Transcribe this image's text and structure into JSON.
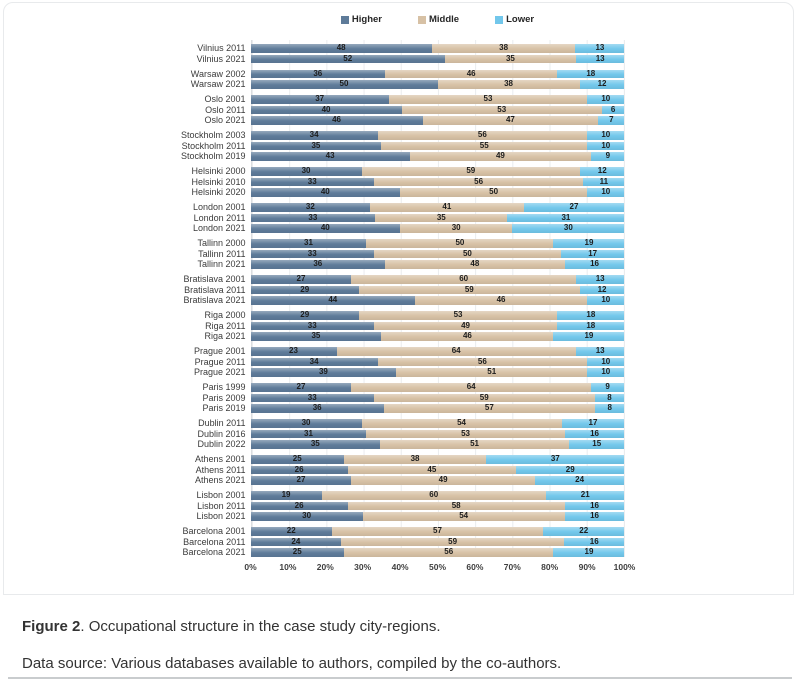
{
  "figure": {
    "caption_label": "Figure 2",
    "caption_text": ". Occupational structure in the case study city-regions.",
    "source_text": "Data source: Various databases available to authors, compiled by the co-authors."
  },
  "chart_data": {
    "type": "bar",
    "orientation": "horizontal",
    "stacked": true,
    "percent_scale": true,
    "xlim": [
      0,
      100
    ],
    "x_ticks": [
      "0%",
      "10%",
      "20%",
      "30%",
      "40%",
      "50%",
      "60%",
      "70%",
      "80%",
      "90%",
      "100%"
    ],
    "grid": true,
    "legend_position": "top-center",
    "series": [
      {
        "name": "Higher",
        "color": "#5e7b99"
      },
      {
        "name": "Middle",
        "color": "#d7c1a5"
      },
      {
        "name": "Lower",
        "color": "#72c7eb"
      }
    ],
    "groups": [
      {
        "city": "Vilnius",
        "rows": [
          {
            "label": "Vilnius 2011",
            "values": [
              48,
              38,
              13
            ]
          },
          {
            "label": "Vilnius 2021",
            "values": [
              52,
              35,
              13
            ]
          }
        ]
      },
      {
        "city": "Warsaw",
        "rows": [
          {
            "label": "Warsaw 2002",
            "values": [
              36,
              46,
              18
            ]
          },
          {
            "label": "Warsaw 2021",
            "values": [
              50,
              38,
              12
            ]
          }
        ]
      },
      {
        "city": "Oslo",
        "rows": [
          {
            "label": "Oslo 2001",
            "values": [
              37,
              53,
              10
            ]
          },
          {
            "label": "Oslo 2011",
            "values": [
              40,
              53,
              6
            ]
          },
          {
            "label": "Oslo 2021",
            "values": [
              46,
              47,
              7
            ]
          }
        ]
      },
      {
        "city": "Stockholm",
        "rows": [
          {
            "label": "Stockholm 2003",
            "values": [
              34,
              56,
              10
            ]
          },
          {
            "label": "Stockholm 2011",
            "values": [
              35,
              55,
              10
            ]
          },
          {
            "label": "Stockholm 2019",
            "values": [
              43,
              49,
              9
            ]
          }
        ]
      },
      {
        "city": "Helsinki",
        "rows": [
          {
            "label": "Helsinki 2000",
            "values": [
              30,
              59,
              12
            ]
          },
          {
            "label": "Helsinki 2010",
            "values": [
              33,
              56,
              11
            ]
          },
          {
            "label": "Helsinki 2020",
            "values": [
              40,
              50,
              10
            ]
          }
        ]
      },
      {
        "city": "London",
        "rows": [
          {
            "label": "London 2001",
            "values": [
              32,
              41,
              27
            ]
          },
          {
            "label": "London 2011",
            "values": [
              33,
              35,
              31
            ]
          },
          {
            "label": "London 2021",
            "values": [
              40,
              30,
              30
            ]
          }
        ]
      },
      {
        "city": "Tallinn",
        "rows": [
          {
            "label": "Tallinn 2000",
            "values": [
              31,
              50,
              19
            ]
          },
          {
            "label": "Tallinn 2011",
            "values": [
              33,
              50,
              17
            ]
          },
          {
            "label": "Tallinn 2021",
            "values": [
              36,
              48,
              16
            ]
          }
        ]
      },
      {
        "city": "Bratislava",
        "rows": [
          {
            "label": "Bratislava 2001",
            "values": [
              27,
              60,
              13
            ]
          },
          {
            "label": "Bratislava 2011",
            "values": [
              29,
              59,
              12
            ]
          },
          {
            "label": "Bratislava 2021",
            "values": [
              44,
              46,
              10
            ]
          }
        ]
      },
      {
        "city": "Riga",
        "rows": [
          {
            "label": "Riga 2000",
            "values": [
              29,
              53,
              18
            ]
          },
          {
            "label": "Riga 2011",
            "values": [
              33,
              49,
              18
            ]
          },
          {
            "label": "Riga 2021",
            "values": [
              35,
              46,
              19
            ]
          }
        ]
      },
      {
        "city": "Prague",
        "rows": [
          {
            "label": "Prague 2001",
            "values": [
              23,
              64,
              13
            ]
          },
          {
            "label": "Prague 2011",
            "values": [
              34,
              56,
              10
            ]
          },
          {
            "label": "Prague 2021",
            "values": [
              39,
              51,
              10
            ]
          }
        ]
      },
      {
        "city": "Paris",
        "rows": [
          {
            "label": "Paris 1999",
            "values": [
              27,
              64,
              9
            ]
          },
          {
            "label": "Paris 2009",
            "values": [
              33,
              59,
              8
            ]
          },
          {
            "label": "Paris 2019",
            "values": [
              36,
              57,
              8
            ]
          }
        ]
      },
      {
        "city": "Dublin",
        "rows": [
          {
            "label": "Dublin 2011",
            "values": [
              30,
              54,
              17
            ]
          },
          {
            "label": "Dublin 2016",
            "values": [
              31,
              53,
              16
            ]
          },
          {
            "label": "Dublin 2022",
            "values": [
              35,
              51,
              15
            ]
          }
        ]
      },
      {
        "city": "Athens",
        "rows": [
          {
            "label": "Athens 2001",
            "values": [
              25,
              38,
              37
            ]
          },
          {
            "label": "Athens 2011",
            "values": [
              26,
              45,
              29
            ]
          },
          {
            "label": "Athens 2021",
            "values": [
              27,
              49,
              24
            ]
          }
        ]
      },
      {
        "city": "Lisbon",
        "rows": [
          {
            "label": "Lisbon 2001",
            "values": [
              19,
              60,
              21
            ]
          },
          {
            "label": "Lisbon 2011",
            "values": [
              26,
              58,
              16
            ]
          },
          {
            "label": "Lisbon 2021",
            "values": [
              30,
              54,
              16
            ]
          }
        ]
      },
      {
        "city": "Barcelona",
        "rows": [
          {
            "label": "Barcelona 2001",
            "values": [
              22,
              57,
              22
            ]
          },
          {
            "label": "Barcelona 2011",
            "values": [
              24,
              59,
              16
            ]
          },
          {
            "label": "Barcelona 2021",
            "values": [
              25,
              56,
              19
            ]
          }
        ]
      }
    ]
  }
}
